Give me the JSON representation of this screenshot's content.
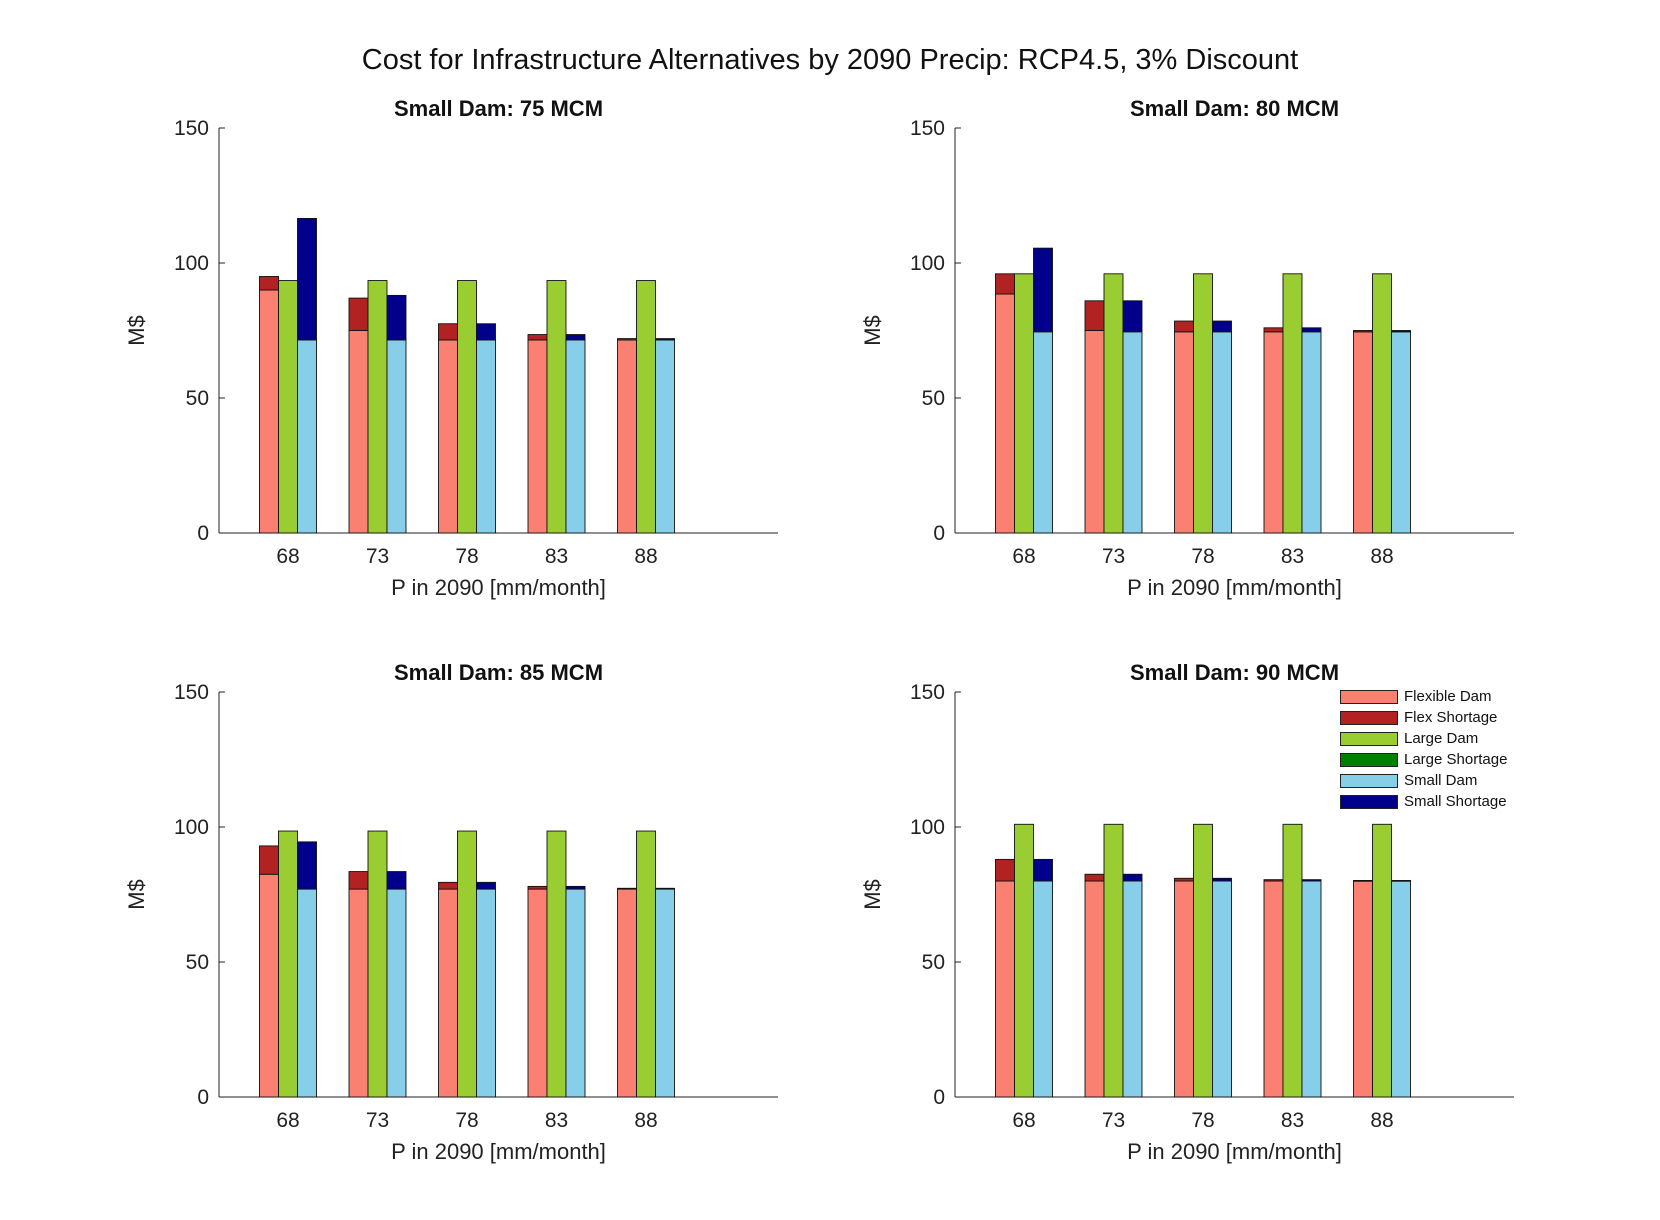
{
  "figure": {
    "title": "Cost for Infrastructure Alternatives by 2090 Precip: RCP4.5, 3% Discount"
  },
  "legend": [
    {
      "label": "Flexible Dam",
      "color": "#FA8072"
    },
    {
      "label": "Flex Shortage",
      "color": "#B22222"
    },
    {
      "label": "Large Dam",
      "color": "#9ACD32"
    },
    {
      "label": "Large Shortage",
      "color": "#008000"
    },
    {
      "label": "Small Dam",
      "color": "#87CEEB"
    },
    {
      "label": "Small Shortage",
      "color": "#00008B"
    }
  ],
  "chart_data": [
    {
      "type": "bar",
      "title": "Small Dam: 75 MCM",
      "xlabel": "P in 2090 [mm/month]",
      "ylabel": "M$",
      "ylim": [
        0,
        150
      ],
      "yticks": [
        0,
        50,
        100,
        150
      ],
      "categories": [
        "68",
        "73",
        "78",
        "83",
        "88"
      ],
      "series": [
        {
          "name": "Flexible Dam",
          "values": [
            90,
            75,
            71.5,
            71.5,
            71.5
          ]
        },
        {
          "name": "Flex Shortage",
          "values": [
            5,
            12,
            6,
            2,
            0.5
          ]
        },
        {
          "name": "Large Dam",
          "values": [
            93.5,
            93.5,
            93.5,
            93.5,
            93.5
          ]
        },
        {
          "name": "Large Shortage",
          "values": [
            0,
            0,
            0,
            0,
            0
          ]
        },
        {
          "name": "Small Dam",
          "values": [
            71.5,
            71.5,
            71.5,
            71.5,
            71.5
          ]
        },
        {
          "name": "Small Shortage",
          "values": [
            45,
            16.5,
            6,
            2,
            0.5
          ]
        }
      ]
    },
    {
      "type": "bar",
      "title": "Small Dam: 80 MCM",
      "xlabel": "P in 2090 [mm/month]",
      "ylabel": "M$",
      "ylim": [
        0,
        150
      ],
      "yticks": [
        0,
        50,
        100,
        150
      ],
      "categories": [
        "68",
        "73",
        "78",
        "83",
        "88"
      ],
      "series": [
        {
          "name": "Flexible Dam",
          "values": [
            88.5,
            75,
            74.5,
            74.5,
            74.5
          ]
        },
        {
          "name": "Flex Shortage",
          "values": [
            7.5,
            11,
            4,
            1.5,
            0.5
          ]
        },
        {
          "name": "Large Dam",
          "values": [
            96,
            96,
            96,
            96,
            96
          ]
        },
        {
          "name": "Large Shortage",
          "values": [
            0,
            0,
            0,
            0,
            0
          ]
        },
        {
          "name": "Small Dam",
          "values": [
            74.5,
            74.5,
            74.5,
            74.5,
            74.5
          ]
        },
        {
          "name": "Small Shortage",
          "values": [
            31,
            11.5,
            4,
            1.5,
            0.5
          ]
        }
      ]
    },
    {
      "type": "bar",
      "title": "Small Dam: 85 MCM",
      "xlabel": "P in 2090 [mm/month]",
      "ylabel": "M$",
      "ylim": [
        0,
        150
      ],
      "yticks": [
        0,
        50,
        100,
        150
      ],
      "categories": [
        "68",
        "73",
        "78",
        "83",
        "88"
      ],
      "series": [
        {
          "name": "Flexible Dam",
          "values": [
            82.5,
            77,
            77,
            77,
            77
          ]
        },
        {
          "name": "Flex Shortage",
          "values": [
            10.5,
            6.5,
            2.5,
            1,
            0.3
          ]
        },
        {
          "name": "Large Dam",
          "values": [
            98.5,
            98.5,
            98.5,
            98.5,
            98.5
          ]
        },
        {
          "name": "Large Shortage",
          "values": [
            0,
            0,
            0,
            0,
            0
          ]
        },
        {
          "name": "Small Dam",
          "values": [
            77,
            77,
            77,
            77,
            77
          ]
        },
        {
          "name": "Small Shortage",
          "values": [
            17.5,
            6.5,
            2.5,
            1,
            0.3
          ]
        }
      ]
    },
    {
      "type": "bar",
      "title": "Small Dam: 90 MCM",
      "xlabel": "P in 2090 [mm/month]",
      "ylabel": "M$",
      "ylim": [
        0,
        150
      ],
      "yticks": [
        0,
        50,
        100,
        150
      ],
      "categories": [
        "68",
        "73",
        "78",
        "83",
        "88"
      ],
      "series": [
        {
          "name": "Flexible Dam",
          "values": [
            80,
            80,
            80,
            80,
            80
          ]
        },
        {
          "name": "Flex Shortage",
          "values": [
            8,
            2.5,
            1,
            0.5,
            0.2
          ]
        },
        {
          "name": "Large Dam",
          "values": [
            101,
            101,
            101,
            101,
            101
          ]
        },
        {
          "name": "Large Shortage",
          "values": [
            0,
            0,
            0,
            0,
            0
          ]
        },
        {
          "name": "Small Dam",
          "values": [
            80,
            80,
            80,
            80,
            80
          ]
        },
        {
          "name": "Small Shortage",
          "values": [
            8,
            2.5,
            1,
            0.5,
            0.2
          ]
        }
      ]
    }
  ]
}
